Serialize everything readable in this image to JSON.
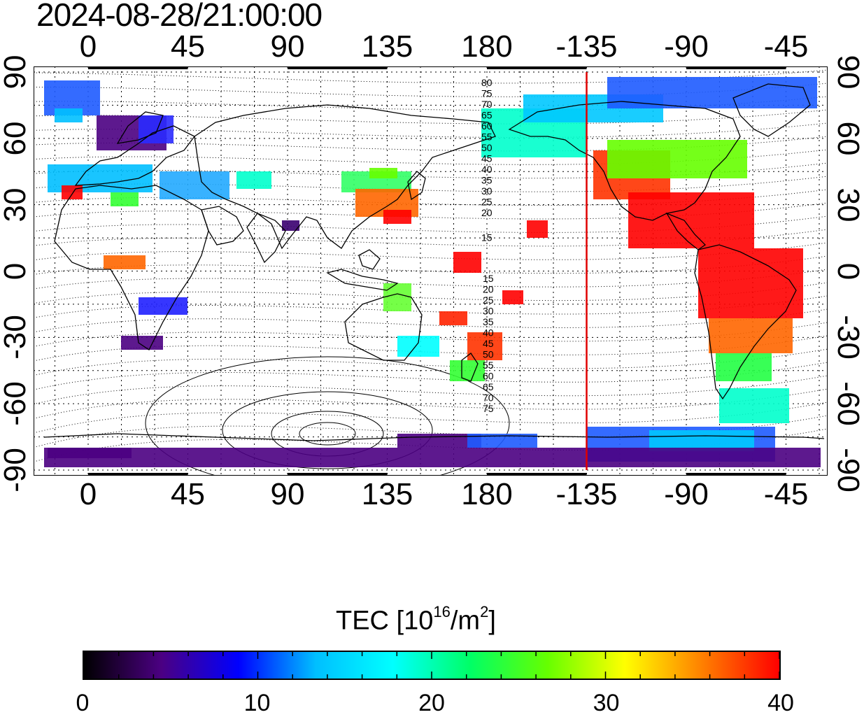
{
  "timestamp": "2024-08-28/21:00:00",
  "map": {
    "x_ticks_top": [
      "0",
      "45",
      "90",
      "135",
      "180",
      "-135",
      "-90",
      "-45"
    ],
    "x_ticks_bottom": [
      "0",
      "45",
      "90",
      "135",
      "180",
      "-135",
      "-90",
      "-45"
    ],
    "y_ticks_left": [
      "90",
      "60",
      "30",
      "0",
      "-30",
      "-60",
      "-90"
    ],
    "y_ticks_right": [
      "90",
      "60",
      "30",
      "0",
      "-30",
      "-60",
      "-90"
    ],
    "lon_values": [
      0,
      45,
      90,
      135,
      180,
      225,
      270,
      315
    ],
    "lat_values": [
      90,
      60,
      30,
      0,
      -30,
      -60,
      -90
    ],
    "contour_labels_north": [
      "80",
      "75",
      "70",
      "65",
      "60",
      "55",
      "50",
      "45",
      "40",
      "35",
      "30",
      "25",
      "20",
      "15"
    ],
    "contour_labels_south": [
      "15",
      "20",
      "25",
      "30",
      "35",
      "40",
      "45",
      "50",
      "55",
      "60",
      "65",
      "70",
      "75"
    ],
    "terminator_line": {
      "longitude": -135,
      "color": "#e00000"
    },
    "colors": {
      "grid": "#000000",
      "coast": "#000000",
      "background": "#ffffff"
    }
  },
  "colorbar": {
    "title_main": "TEC  [10",
    "title_sup1": "16",
    "title_mid": "/m",
    "title_sup2": "2",
    "title_end": "]",
    "ticks": [
      "0",
      "10",
      "20",
      "30",
      "40"
    ],
    "tick_values": [
      0,
      10,
      20,
      30,
      40
    ],
    "range": [
      0,
      40
    ],
    "colormap": [
      "#000000",
      "#4b0082",
      "#0000ff",
      "#00bfff",
      "#00ffff",
      "#00ff66",
      "#66ff00",
      "#ffff00",
      "#ff8000",
      "#ff0000"
    ]
  }
}
